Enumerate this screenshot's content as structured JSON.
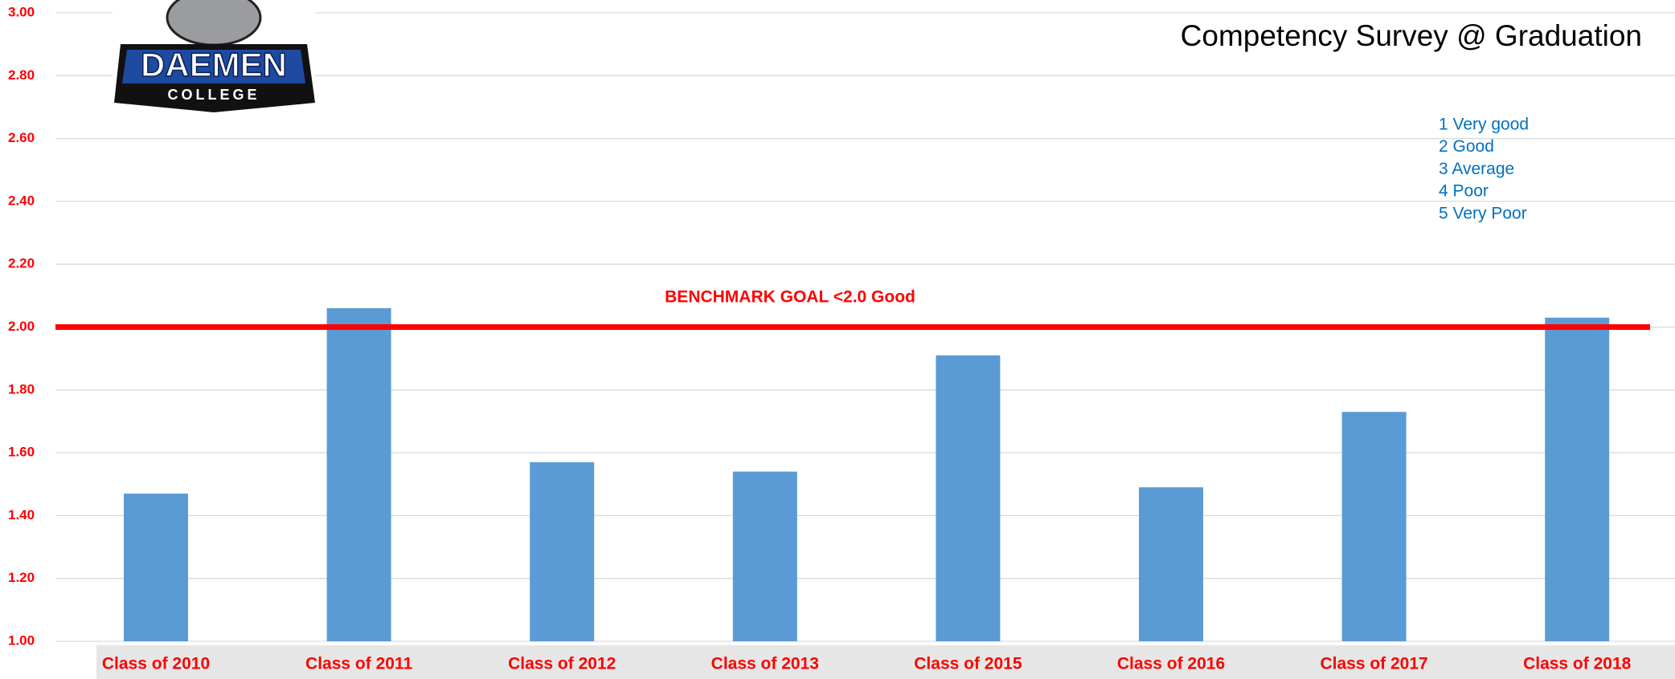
{
  "chart_data": {
    "type": "bar",
    "title": "Competency Survey @ Graduation",
    "categories": [
      "Class of 2010",
      "Class of 2011",
      "Class of 2012",
      "Class of 2013",
      "Class of 2015",
      "Class of 2016",
      "Class of 2017",
      "Class of 2018"
    ],
    "values": [
      1.47,
      2.06,
      1.57,
      1.54,
      1.91,
      1.49,
      1.73,
      2.03
    ],
    "color": "#5b9bd5",
    "ylim": [
      1,
      3
    ],
    "yticks": [
      {
        "value": 1,
        "label": "1.00"
      },
      {
        "value": 1.2,
        "label": "1.20"
      },
      {
        "value": 1.4,
        "label": "1.40"
      },
      {
        "value": 1.6,
        "label": "1.60"
      },
      {
        "value": 1.8,
        "label": "1.80"
      },
      {
        "value": 2,
        "label": "2.00"
      },
      {
        "value": 2.2,
        "label": "2.20"
      },
      {
        "value": 2.4,
        "label": "2.40"
      },
      {
        "value": 2.6,
        "label": "2.60"
      },
      {
        "value": 2.8,
        "label": "2.80"
      },
      {
        "value": 3,
        "label": "3.00"
      }
    ],
    "grid": true,
    "benchmark": {
      "value": 2,
      "label": "BENCHMARK GOAL <2.0 Good",
      "color": "#ff0000"
    },
    "scale_notes": [
      "1 Very good",
      "2 Good",
      "3 Average",
      "4 Poor",
      "5 Very Poor"
    ],
    "logo": {
      "name": "DAEMEN",
      "sub": "COLLEGE"
    }
  }
}
